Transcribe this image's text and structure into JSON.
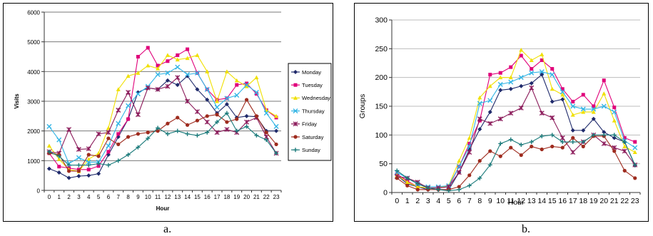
{
  "captions": {
    "a": "a.",
    "b": "b."
  },
  "series_style": [
    {
      "name": "Monday",
      "color": "#1f2a6b",
      "marker": "diamond"
    },
    {
      "name": "Tuesday",
      "color": "#e0007a",
      "marker": "square"
    },
    {
      "name": "Wednesday",
      "color": "#f0e000",
      "marker": "triangle"
    },
    {
      "name": "Thursday",
      "color": "#33b5e5",
      "marker": "x"
    },
    {
      "name": "Friday",
      "color": "#8b1a5a",
      "marker": "star"
    },
    {
      "name": "Saturday",
      "color": "#9e2b1e",
      "marker": "circle"
    },
    {
      "name": "Sunday",
      "color": "#1a7a7a",
      "marker": "plus"
    }
  ],
  "chart_data": [
    {
      "type": "line",
      "xlabel": "Hour",
      "ylabel": "Visits",
      "ylim": [
        0,
        6000
      ],
      "yticks": [
        0,
        1000,
        2000,
        3000,
        4000,
        5000,
        6000
      ],
      "grid": "horizontal",
      "legend": "right",
      "x": [
        0,
        1,
        2,
        3,
        4,
        5,
        6,
        7,
        8,
        9,
        10,
        11,
        12,
        13,
        14,
        15,
        16,
        17,
        18,
        19,
        20,
        21,
        22,
        23
      ],
      "series": [
        {
          "name": "Monday",
          "values": [
            730,
            600,
            420,
            480,
            500,
            560,
            1200,
            1800,
            2400,
            3300,
            3450,
            3400,
            3700,
            3550,
            3850,
            3400,
            3050,
            2600,
            2900,
            2450,
            2500,
            2480,
            2000,
            2000
          ]
        },
        {
          "name": "Tuesday",
          "values": [
            1250,
            800,
            750,
            700,
            700,
            820,
            1300,
            1900,
            2400,
            4500,
            4800,
            4200,
            4350,
            4550,
            4750,
            3950,
            3400,
            3050,
            3100,
            3550,
            3600,
            3250,
            2700,
            2450
          ]
        },
        {
          "name": "Wednesday",
          "values": [
            1500,
            1050,
            700,
            640,
            1050,
            1250,
            2100,
            3400,
            3850,
            3950,
            4200,
            4100,
            4550,
            4400,
            4450,
            4550,
            4000,
            3000,
            4000,
            3700,
            3500,
            3800,
            2700,
            2500
          ]
        },
        {
          "name": "Thursday",
          "values": [
            2150,
            1700,
            900,
            1100,
            950,
            950,
            1500,
            2250,
            2850,
            3250,
            3500,
            3900,
            3950,
            4150,
            3900,
            3950,
            3400,
            2800,
            3100,
            3200,
            3550,
            3300,
            2600,
            2150
          ]
        },
        {
          "name": "Friday",
          "values": [
            1300,
            1250,
            2050,
            1380,
            1400,
            1900,
            1950,
            2700,
            3300,
            2550,
            3450,
            3400,
            3500,
            3800,
            3000,
            2650,
            2300,
            1950,
            2050,
            1950,
            2300,
            2450,
            1800,
            1250
          ]
        },
        {
          "name": "Saturday",
          "values": [
            1250,
            1200,
            650,
            650,
            1200,
            1150,
            1750,
            1550,
            1800,
            1900,
            1950,
            2000,
            2250,
            2450,
            2200,
            2350,
            2500,
            2550,
            2300,
            2400,
            3050,
            2500,
            1950,
            1550
          ]
        },
        {
          "name": "Sunday",
          "values": [
            1300,
            1150,
            850,
            850,
            850,
            900,
            850,
            1000,
            1200,
            1450,
            1750,
            2100,
            1900,
            2000,
            1900,
            1850,
            1950,
            2300,
            2600,
            2000,
            2150,
            1850,
            1700,
            1250
          ]
        }
      ]
    },
    {
      "type": "line",
      "xlabel": "Hour",
      "ylabel": "Groups",
      "ylim": [
        0,
        300
      ],
      "yticks": [
        0,
        50,
        100,
        150,
        200,
        250,
        300
      ],
      "grid": "horizontal",
      "legend": "none",
      "x": [
        0,
        1,
        2,
        3,
        4,
        5,
        6,
        7,
        8,
        9,
        10,
        11,
        12,
        13,
        14,
        15,
        16,
        17,
        18,
        19,
        20,
        21,
        22,
        23
      ],
      "series": [
        {
          "name": "Monday",
          "values": [
            30,
            15,
            10,
            5,
            5,
            5,
            35,
            75,
            110,
            140,
            178,
            180,
            185,
            190,
            205,
            158,
            162,
            108,
            108,
            128,
            105,
            95,
            88,
            47
          ]
        },
        {
          "name": "Tuesday",
          "values": [
            32,
            20,
            10,
            8,
            8,
            10,
            45,
            85,
            125,
            205,
            208,
            218,
            238,
            215,
            230,
            215,
            180,
            158,
            170,
            150,
            195,
            148,
            95,
            88
          ]
        },
        {
          "name": "Wednesday",
          "values": [
            30,
            18,
            10,
            8,
            8,
            12,
            55,
            95,
            165,
            185,
            200,
            200,
            248,
            230,
            240,
            180,
            170,
            135,
            140,
            140,
            172,
            125,
            80,
            70
          ]
        },
        {
          "name": "Thursday",
          "values": [
            35,
            25,
            15,
            10,
            10,
            12,
            45,
            80,
            155,
            160,
            188,
            192,
            200,
            208,
            210,
            205,
            175,
            150,
            145,
            145,
            150,
            140,
            90,
            78
          ]
        },
        {
          "name": "Friday",
          "values": [
            28,
            25,
            18,
            8,
            8,
            10,
            35,
            70,
            128,
            120,
            128,
            138,
            147,
            182,
            138,
            130,
            95,
            70,
            88,
            100,
            85,
            78,
            72,
            48
          ]
        },
        {
          "name": "Saturday",
          "values": [
            25,
            12,
            5,
            5,
            5,
            5,
            10,
            30,
            55,
            72,
            63,
            78,
            65,
            80,
            75,
            80,
            78,
            95,
            80,
            98,
            98,
            72,
            38,
            25
          ]
        },
        {
          "name": "Sunday",
          "values": [
            38,
            25,
            15,
            8,
            5,
            3,
            5,
            12,
            25,
            48,
            85,
            92,
            83,
            88,
            98,
            100,
            88,
            88,
            88,
            100,
            100,
            100,
            88,
            48
          ]
        }
      ]
    }
  ]
}
